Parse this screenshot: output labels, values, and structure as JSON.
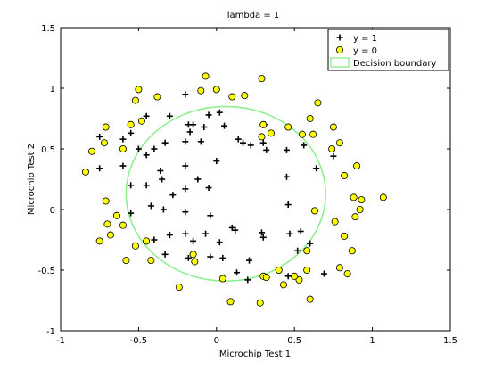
{
  "chart_data": {
    "type": "scatter",
    "title": "lambda = 1",
    "xlabel": "Microchip Test 1",
    "ylabel": "Microchip Test 2",
    "xlim": [
      -1,
      1.5
    ],
    "ylim": [
      -1,
      1.5
    ],
    "xticks": [
      "-1",
      "-0.5",
      "0",
      "0.5",
      "1",
      "1.5"
    ],
    "yticks": [
      "-1",
      "-0.5",
      "0",
      "0.5",
      "1",
      "1.5"
    ],
    "grid": false,
    "legend_position": "top-right",
    "series": [
      {
        "name": "y = 1",
        "marker": "plus",
        "color": "#000000",
        "points": [
          [
            -0.2,
            0.95
          ],
          [
            -0.45,
            0.77
          ],
          [
            -0.3,
            0.77
          ],
          [
            -0.18,
            0.7
          ],
          [
            -0.15,
            0.7
          ],
          [
            -0.08,
            0.68
          ],
          [
            -0.05,
            0.78
          ],
          [
            0.02,
            0.8
          ],
          [
            -0.17,
            0.64
          ],
          [
            -0.1,
            0.56
          ],
          [
            -0.33,
            0.55
          ],
          [
            -0.2,
            0.56
          ],
          [
            -0.75,
            0.6
          ],
          [
            -0.55,
            0.63
          ],
          [
            -0.6,
            0.58
          ],
          [
            -0.5,
            0.5
          ],
          [
            -0.4,
            0.5
          ],
          [
            -0.75,
            0.34
          ],
          [
            -0.6,
            0.36
          ],
          [
            -0.45,
            0.45
          ],
          [
            -0.36,
            0.32
          ],
          [
            -0.2,
            0.36
          ],
          [
            0.0,
            0.4
          ],
          [
            0.05,
            0.69
          ],
          [
            0.14,
            0.58
          ],
          [
            0.17,
            0.55
          ],
          [
            0.22,
            0.53
          ],
          [
            0.3,
            0.55
          ],
          [
            0.32,
            0.49
          ],
          [
            0.45,
            0.49
          ],
          [
            0.56,
            0.53
          ],
          [
            0.75,
            0.44
          ],
          [
            0.31,
            0.7
          ],
          [
            -0.55,
            0.2
          ],
          [
            -0.45,
            0.2
          ],
          [
            -0.2,
            0.17
          ],
          [
            -0.42,
            0.03
          ],
          [
            -0.34,
            0.0
          ],
          [
            -0.2,
            -0.02
          ],
          [
            -0.3,
            -0.21
          ],
          [
            -0.4,
            -0.25
          ],
          [
            -0.33,
            -0.37
          ],
          [
            -0.2,
            -0.2
          ],
          [
            -0.15,
            -0.26
          ],
          [
            -0.07,
            -0.2
          ],
          [
            -0.04,
            -0.39
          ],
          [
            -0.18,
            -0.4
          ],
          [
            0.02,
            -0.27
          ],
          [
            0.04,
            -0.4
          ],
          [
            0.13,
            -0.52
          ],
          [
            0.2,
            -0.58
          ],
          [
            0.21,
            -0.42
          ],
          [
            0.3,
            -0.23
          ],
          [
            0.46,
            0.04
          ],
          [
            0.47,
            -0.2
          ],
          [
            0.52,
            -0.34
          ],
          [
            0.69,
            -0.53
          ],
          [
            0.6,
            -0.28
          ],
          [
            0.64,
            0.34
          ],
          [
            0.45,
            0.27
          ],
          [
            -0.28,
            0.12
          ],
          [
            -0.12,
            0.25
          ],
          [
            -0.05,
            0.18
          ],
          [
            0.12,
            -0.17
          ],
          [
            0.46,
            -0.55
          ],
          [
            -0.35,
            0.25
          ],
          [
            -0.55,
            -0.03
          ],
          [
            0.29,
            -0.19
          ],
          [
            0.1,
            -0.15
          ],
          [
            -0.04,
            -0.05
          ],
          [
            0.54,
            -0.18
          ]
        ]
      },
      {
        "name": "y = 0",
        "marker": "circle",
        "color": "#ffff00",
        "points": [
          [
            -0.07,
            1.1
          ],
          [
            0.29,
            1.08
          ],
          [
            -0.5,
            0.99
          ],
          [
            -0.38,
            0.93
          ],
          [
            -0.1,
            0.98
          ],
          [
            0.0,
            0.99
          ],
          [
            0.1,
            0.93
          ],
          [
            0.18,
            0.94
          ],
          [
            -0.52,
            0.9
          ],
          [
            0.65,
            0.88
          ],
          [
            0.6,
            0.75
          ],
          [
            -0.48,
            0.73
          ],
          [
            0.46,
            0.68
          ],
          [
            0.75,
            0.68
          ],
          [
            -0.55,
            0.7
          ],
          [
            -0.71,
            0.68
          ],
          [
            0.62,
            0.62
          ],
          [
            0.55,
            0.62
          ],
          [
            0.29,
            0.6
          ],
          [
            0.3,
            0.7
          ],
          [
            0.79,
            0.55
          ],
          [
            0.74,
            0.5
          ],
          [
            -0.72,
            0.55
          ],
          [
            -0.8,
            0.48
          ],
          [
            0.9,
            0.36
          ],
          [
            0.82,
            0.28
          ],
          [
            -0.84,
            0.31
          ],
          [
            0.88,
            0.1
          ],
          [
            0.93,
            0.08
          ],
          [
            1.07,
            0.1
          ],
          [
            -0.71,
            0.07
          ],
          [
            -0.64,
            -0.05
          ],
          [
            0.63,
            -0.01
          ],
          [
            -0.7,
            -0.12
          ],
          [
            -0.6,
            -0.13
          ],
          [
            0.89,
            -0.06
          ],
          [
            0.92,
            0.0
          ],
          [
            0.76,
            -0.1
          ],
          [
            -0.75,
            -0.26
          ],
          [
            -0.68,
            -0.21
          ],
          [
            -0.52,
            -0.3
          ],
          [
            -0.45,
            -0.26
          ],
          [
            0.82,
            -0.22
          ],
          [
            0.87,
            -0.34
          ],
          [
            -0.42,
            -0.42
          ],
          [
            -0.58,
            -0.42
          ],
          [
            0.58,
            -0.34
          ],
          [
            0.79,
            -0.48
          ],
          [
            0.84,
            -0.53
          ],
          [
            0.4,
            -0.5
          ],
          [
            0.58,
            -0.5
          ],
          [
            0.3,
            -0.55
          ],
          [
            0.32,
            -0.56
          ],
          [
            0.04,
            -0.57
          ],
          [
            -0.14,
            -0.43
          ],
          [
            -0.15,
            -0.37
          ],
          [
            -0.24,
            -0.64
          ],
          [
            0.09,
            -0.76
          ],
          [
            0.28,
            -0.77
          ],
          [
            0.43,
            -0.62
          ],
          [
            0.6,
            -0.74
          ],
          [
            0.53,
            -0.58
          ],
          [
            -0.6,
            0.5
          ],
          [
            0.35,
            0.63
          ],
          [
            0.5,
            -0.55
          ]
        ]
      },
      {
        "name": "Decision boundary",
        "marker": "line",
        "color": "#90ee90",
        "center": [
          0.06,
          0.13
        ],
        "rx": 0.64,
        "ry": 0.72
      }
    ]
  }
}
